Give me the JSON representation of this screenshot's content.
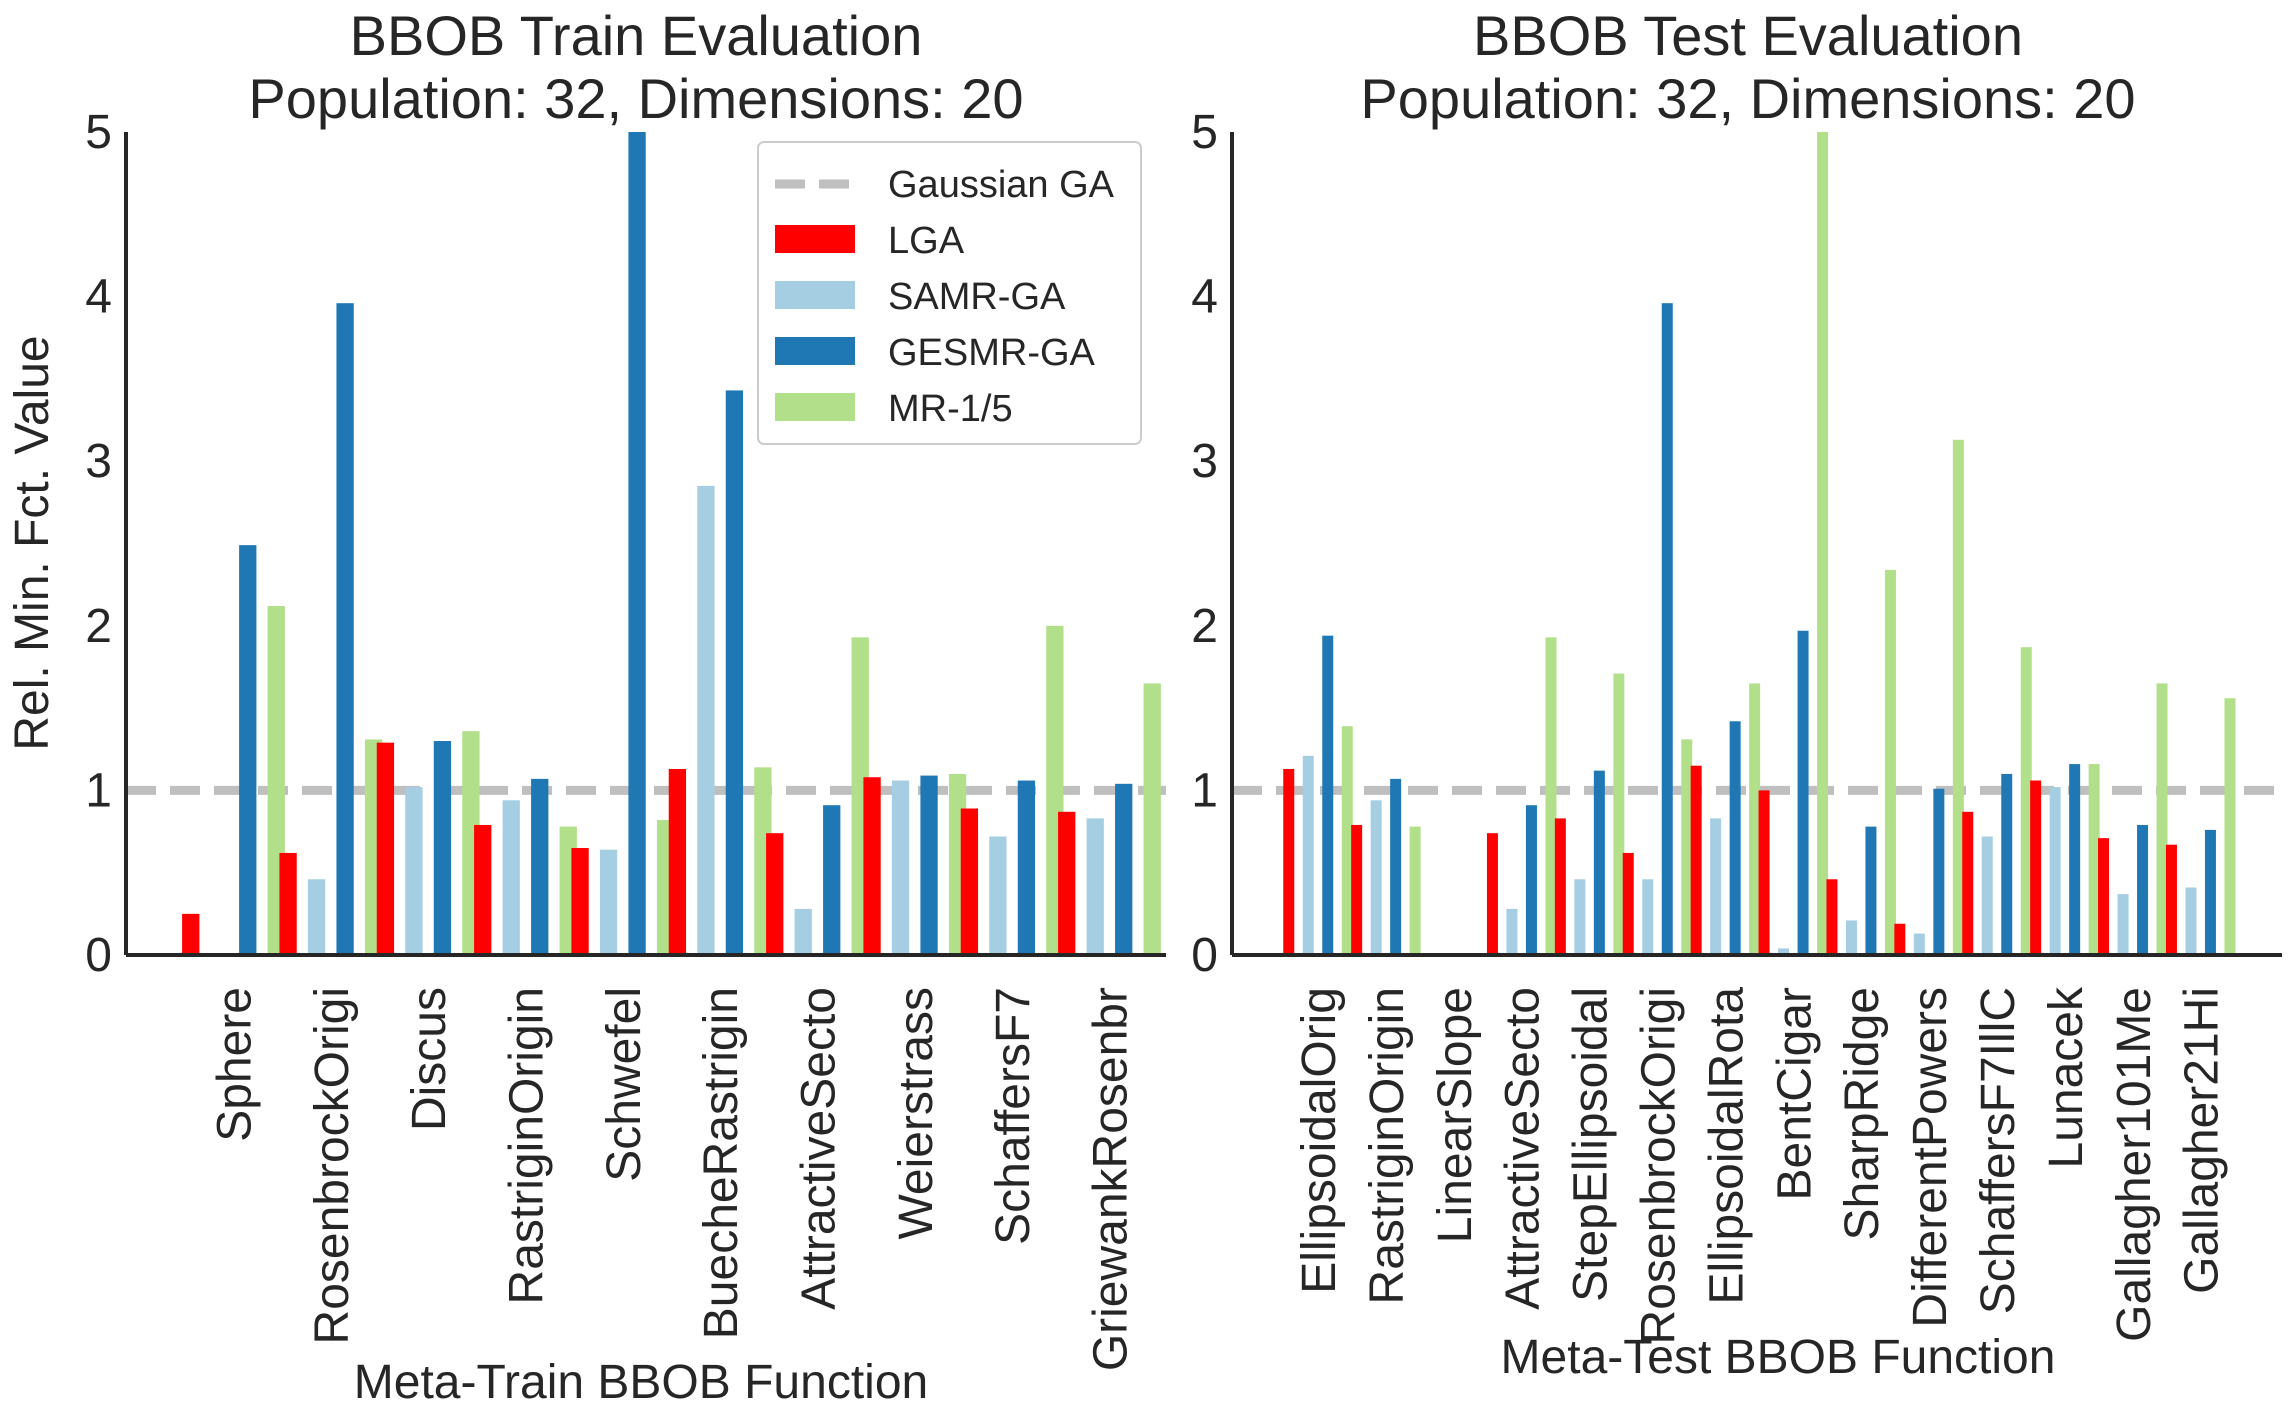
{
  "chart_data": [
    {
      "type": "bar",
      "title_line1": "BBOB Train Evaluation",
      "title_line2": "Population: 32, Dimensions: 20",
      "xlabel": "Meta-Train BBOB Function",
      "ylabel": "Rel. Min. Fct. Value",
      "ylim": [
        0,
        5
      ],
      "yticks": [
        "0",
        "1",
        "2",
        "3",
        "4",
        "5"
      ],
      "reference_line": {
        "name": "Gaussian GA",
        "value": 1.0
      },
      "categories": [
        "Sphere",
        "RosenbrockOrigi",
        "Discus",
        "RastriginOrigin",
        "Schwefel",
        "BuecheRastrigin",
        "AttractiveSecto",
        "Weierstrass",
        "SchaffersF7",
        "GriewankRosenbr"
      ],
      "series": [
        {
          "name": "LGA",
          "color": "#ff0000",
          "values": [
            0.25,
            0.62,
            1.29,
            0.79,
            0.65,
            1.13,
            0.74,
            1.08,
            0.89,
            0.87
          ]
        },
        {
          "name": "SAMR-GA",
          "color": "#a6cee3",
          "values": [
            0.0,
            0.46,
            1.02,
            0.94,
            0.64,
            2.85,
            0.28,
            1.06,
            0.72,
            0.83
          ]
        },
        {
          "name": "GESMR-GA",
          "color": "#1f78b4",
          "values": [
            2.49,
            3.96,
            1.3,
            1.07,
            5.0,
            3.43,
            0.91,
            1.09,
            1.06,
            1.04
          ]
        },
        {
          "name": "MR-1/5",
          "color": "#b2df8a",
          "values": [
            2.12,
            1.31,
            1.36,
            0.78,
            0.82,
            1.14,
            1.93,
            1.1,
            2.0,
            1.65
          ]
        }
      ],
      "legend": {
        "placement": "upper right",
        "entries": [
          "Gaussian GA",
          "LGA",
          "SAMR-GA",
          "GESMR-GA",
          "MR-1/5"
        ]
      }
    },
    {
      "type": "bar",
      "title_line1": "BBOB Test Evaluation",
      "title_line2": "Population: 32, Dimensions: 20",
      "xlabel": "Meta-Test BBOB Function",
      "ylabel": "",
      "ylim": [
        0,
        5
      ],
      "yticks": [
        "0",
        "1",
        "2",
        "3",
        "4",
        "5"
      ],
      "reference_line": {
        "name": "Gaussian GA",
        "value": 1.0
      },
      "categories": [
        "EllipsoidalOrig",
        "RastriginOrigin",
        "LinearSlope",
        "AttractiveSecto",
        "StepEllipsoidal",
        "RosenbrockOrigi",
        "EllipsoidalRota",
        "BentCigar",
        "SharpRidge",
        "DifferentPowers",
        "SchaffersF7IllC",
        "Lunacek",
        "Gallagher101Me",
        "Gallagher21Hi"
      ],
      "series": [
        {
          "name": "LGA",
          "color": "#ff0000",
          "values": [
            1.13,
            0.79,
            0.0,
            0.74,
            0.83,
            0.62,
            1.15,
            1.0,
            0.46,
            0.19,
            0.87,
            1.06,
            0.71,
            0.67
          ]
        },
        {
          "name": "SAMR-GA",
          "color": "#a6cee3",
          "values": [
            1.21,
            0.94,
            0.0,
            0.28,
            0.46,
            0.46,
            0.83,
            0.04,
            0.21,
            0.13,
            0.72,
            1.02,
            0.37,
            0.41
          ]
        },
        {
          "name": "GESMR-GA",
          "color": "#1f78b4",
          "values": [
            1.94,
            1.07,
            0.0,
            0.91,
            1.12,
            3.96,
            1.42,
            1.97,
            0.78,
            1.01,
            1.1,
            1.16,
            0.79,
            0.76
          ]
        },
        {
          "name": "MR-1/5",
          "color": "#b2df8a",
          "values": [
            1.39,
            0.78,
            0.0,
            1.93,
            1.71,
            1.31,
            1.65,
            5.0,
            2.34,
            3.13,
            1.87,
            1.16,
            1.65,
            1.56
          ]
        }
      ]
    }
  ]
}
